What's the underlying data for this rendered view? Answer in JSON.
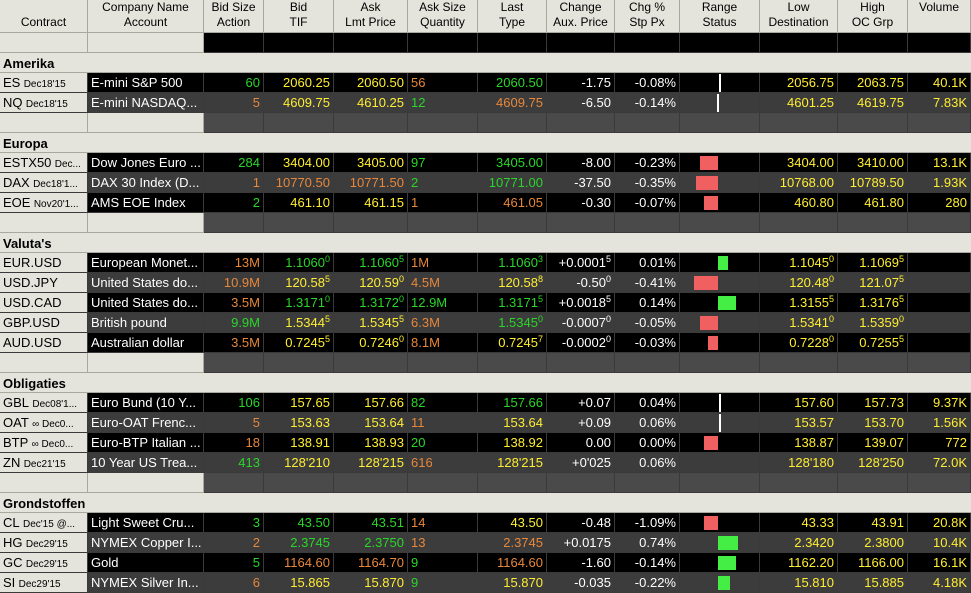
{
  "header": {
    "columns": [
      {
        "l1": "",
        "l2": "Contract"
      },
      {
        "l1": "Company Name",
        "l2": "Account"
      },
      {
        "l1": "Bid Size",
        "l2": "Action"
      },
      {
        "l1": "Bid",
        "l2": "TIF"
      },
      {
        "l1": "Ask",
        "l2": "Lmt Price"
      },
      {
        "l1": "Ask Size",
        "l2": "Quantity"
      },
      {
        "l1": "Last",
        "l2": "Type"
      },
      {
        "l1": "Change",
        "l2": "Aux. Price"
      },
      {
        "l1": "Chg %",
        "l2": "Stp Px"
      },
      {
        "l1": "Range",
        "l2": "Status"
      },
      {
        "l1": "Low",
        "l2": "Destination"
      },
      {
        "l1": "High",
        "l2": "OC Grp"
      },
      {
        "l1": "Volume",
        "l2": ""
      }
    ]
  },
  "colors": {
    "bid_size_up": "#2ad62a",
    "bid_size_down": "#e8873a",
    "change_negative": "#d41c1c",
    "change_positive": "#2727d0",
    "price": "#ffee33"
  },
  "sections": [
    {
      "title": "Amerika",
      "rows": [
        {
          "sym": "ES",
          "exp": "Dec18'15",
          "desc": "E-mini S&P 500",
          "bidsize": "60",
          "bs_c": "g",
          "bid": "2060.25",
          "bid_sup": "",
          "bid_c": "y",
          "ask": "2060.50",
          "ask_sup": "",
          "ask_c": "y",
          "asksize": "56",
          "as_c": "o",
          "last": "2060.50",
          "last_sup": "",
          "last_c": "g",
          "chg": "-1.75",
          "chg_sup": "",
          "chg_t": "neg",
          "pct": "-0.08%",
          "pct_t": "neg",
          "range": {
            "type": "line",
            "level": 0.02
          },
          "low": "2056.75",
          "low_sup": "",
          "high": "2063.75",
          "high_sup": "",
          "vol": "40.1K"
        },
        {
          "sym": "NQ",
          "exp": "Dec18'15",
          "desc": "E-mini NASDAQ...",
          "bidsize": "5",
          "bs_c": "o",
          "bid": "4609.75",
          "bid_sup": "",
          "bid_c": "y",
          "ask": "4610.25",
          "ask_sup": "",
          "ask_c": "y",
          "asksize": "12",
          "as_c": "g",
          "last": "4609.75",
          "last_sup": "",
          "last_c": "o",
          "chg": "-6.50",
          "chg_sup": "",
          "chg_t": "neg",
          "pct": "-0.14%",
          "pct_t": "neg",
          "range": {
            "type": "line",
            "level": -0.02
          },
          "low": "4601.25",
          "low_sup": "",
          "high": "4619.75",
          "high_sup": "",
          "vol": "7.83K"
        }
      ]
    },
    {
      "title": "Europa",
      "rows": [
        {
          "sym": "ESTX50",
          "exp": "Dec...",
          "desc": "Dow Jones Euro ...",
          "bidsize": "284",
          "bs_c": "g",
          "bid": "3404.00",
          "bid_sup": "",
          "bid_c": "y",
          "ask": "3405.00",
          "ask_sup": "",
          "ask_c": "y",
          "asksize": "97",
          "as_c": "g",
          "last": "3405.00",
          "last_sup": "",
          "last_c": "g",
          "chg": "-8.00",
          "chg_sup": "",
          "chg_t": "neg",
          "pct": "-0.23%",
          "pct_t": "neg",
          "range": {
            "type": "red",
            "level": -0.3
          },
          "low": "3404.00",
          "low_sup": "",
          "high": "3410.00",
          "high_sup": "",
          "vol": "13.1K"
        },
        {
          "sym": "DAX",
          "exp": "Dec18'1...",
          "desc": "DAX 30 Index (D...",
          "bidsize": "1",
          "bs_c": "o",
          "bid": "10770.50",
          "bid_sup": "",
          "bid_c": "o",
          "ask": "10771.50",
          "ask_sup": "",
          "ask_c": "o",
          "asksize": "2",
          "as_c": "g",
          "last": "10771.00",
          "last_sup": "",
          "last_c": "g",
          "chg": "-37.50",
          "chg_sup": "",
          "chg_t": "neg",
          "pct": "-0.35%",
          "pct_t": "neg",
          "range": {
            "type": "red",
            "level": -0.4
          },
          "low": "10768.00",
          "low_sup": "",
          "high": "10789.50",
          "high_sup": "",
          "vol": "1.93K"
        },
        {
          "sym": "EOE",
          "exp": "Nov20'1...",
          "desc": "AMS EOE Index",
          "bidsize": "2",
          "bs_c": "g",
          "bid": "461.10",
          "bid_sup": "",
          "bid_c": "y",
          "ask": "461.15",
          "ask_sup": "",
          "ask_c": "y",
          "asksize": "1",
          "as_c": "o",
          "last": "461.05",
          "last_sup": "",
          "last_c": "o",
          "chg": "-0.30",
          "chg_sup": "",
          "chg_t": "neg",
          "pct": "-0.07%",
          "pct_t": "neg",
          "range": {
            "type": "red",
            "level": -0.2
          },
          "low": "460.80",
          "low_sup": "",
          "high": "461.80",
          "high_sup": "",
          "vol": "280"
        }
      ]
    },
    {
      "title": "Valuta's",
      "rows": [
        {
          "sym": "EUR.USD",
          "exp": "",
          "desc": "European Monet...",
          "bidsize": "13M",
          "bs_c": "o",
          "bid": "1.1060",
          "bid_sup": "0",
          "bid_c": "g",
          "ask": "1.1060",
          "ask_sup": "5",
          "ask_c": "g",
          "asksize": "1M",
          "as_c": "o",
          "last": "1.1060",
          "last_sup": "3",
          "last_c": "g",
          "chg": "+0.0001",
          "chg_sup": "5",
          "chg_t": "pos",
          "pct": "0.01%",
          "pct_t": "pos",
          "range": {
            "type": "green",
            "level": 0.1
          },
          "low": "1.1045",
          "low_sup": "0",
          "high": "1.1069",
          "high_sup": "5",
          "vol": ""
        },
        {
          "sym": "USD.JPY",
          "exp": "",
          "desc": "United States do...",
          "bidsize": "10.9M",
          "bs_c": "o",
          "bid": "120.58",
          "bid_sup": "5",
          "bid_c": "y",
          "ask": "120.59",
          "ask_sup": "0",
          "ask_c": "y",
          "asksize": "4.5M",
          "as_c": "o",
          "last": "120.58",
          "last_sup": "8",
          "last_c": "y",
          "chg": "-0.50",
          "chg_sup": "0",
          "chg_t": "neg",
          "pct": "-0.41%",
          "pct_t": "neg",
          "range": {
            "type": "red",
            "level": -0.45
          },
          "low": "120.48",
          "low_sup": "0",
          "high": "121.07",
          "high_sup": "5",
          "vol": ""
        },
        {
          "sym": "USD.CAD",
          "exp": "",
          "desc": "United States do...",
          "bidsize": "3.5M",
          "bs_c": "o",
          "bid": "1.3171",
          "bid_sup": "0",
          "bid_c": "g",
          "ask": "1.3172",
          "ask_sup": "0",
          "ask_c": "g",
          "asksize": "12.9M",
          "as_c": "g",
          "last": "1.3171",
          "last_sup": "5",
          "last_c": "g",
          "chg": "+0.0018",
          "chg_sup": "5",
          "chg_t": "pos",
          "pct": "0.14%",
          "pct_t": "pos",
          "range": {
            "type": "green",
            "level": 0.3
          },
          "low": "1.3155",
          "low_sup": "5",
          "high": "1.3176",
          "high_sup": "5",
          "vol": ""
        },
        {
          "sym": "GBP.USD",
          "exp": "",
          "desc": "British pound",
          "bidsize": "9.9M",
          "bs_c": "g",
          "bid": "1.5344",
          "bid_sup": "5",
          "bid_c": "y",
          "ask": "1.5345",
          "ask_sup": "5",
          "ask_c": "y",
          "asksize": "6.3M",
          "as_c": "o",
          "last": "1.5345",
          "last_sup": "0",
          "last_c": "g",
          "chg": "-0.0007",
          "chg_sup": "0",
          "chg_t": "neg",
          "pct": "-0.05%",
          "pct_t": "neg",
          "range": {
            "type": "red",
            "level": -0.3
          },
          "low": "1.5341",
          "low_sup": "0",
          "high": "1.5359",
          "high_sup": "0",
          "vol": ""
        },
        {
          "sym": "AUD.USD",
          "exp": "",
          "desc": "Australian dollar",
          "bidsize": "3.5M",
          "bs_c": "o",
          "bid": "0.7245",
          "bid_sup": "5",
          "bid_c": "y",
          "ask": "0.7246",
          "ask_sup": "0",
          "ask_c": "y",
          "asksize": "8.1M",
          "as_c": "o",
          "last": "0.7245",
          "last_sup": "7",
          "last_c": "y",
          "chg": "-0.0002",
          "chg_sup": "0",
          "chg_t": "neg",
          "pct": "-0.03%",
          "pct_t": "neg",
          "range": {
            "type": "red",
            "level": -0.1
          },
          "low": "0.7228",
          "low_sup": "0",
          "high": "0.7255",
          "high_sup": "5",
          "vol": ""
        }
      ]
    },
    {
      "title": "Obligaties",
      "rows": [
        {
          "sym": "GBL",
          "exp": "Dec08'1...",
          "desc": "Euro Bund (10 Y...",
          "bidsize": "106",
          "bs_c": "g",
          "bid": "157.65",
          "bid_sup": "",
          "bid_c": "y",
          "ask": "157.66",
          "ask_sup": "",
          "ask_c": "y",
          "asksize": "82",
          "as_c": "g",
          "last": "157.66",
          "last_sup": "",
          "last_c": "g",
          "chg": "+0.07",
          "chg_sup": "",
          "chg_t": "pos",
          "pct": "0.04%",
          "pct_t": "pos",
          "range": {
            "type": "line",
            "level": 0.02
          },
          "low": "157.60",
          "low_sup": "",
          "high": "157.73",
          "high_sup": "",
          "vol": "9.37K"
        },
        {
          "sym": "OAT",
          "exp": "∞ Dec0...",
          "desc": "Euro-OAT Frenc...",
          "bidsize": "5",
          "bs_c": "o",
          "bid": "153.63",
          "bid_sup": "",
          "bid_c": "y",
          "ask": "153.64",
          "ask_sup": "",
          "ask_c": "y",
          "asksize": "11",
          "as_c": "o",
          "last": "153.64",
          "last_sup": "",
          "last_c": "y",
          "chg": "+0.09",
          "chg_sup": "",
          "chg_t": "pos",
          "pct": "0.06%",
          "pct_t": "pos",
          "range": {
            "type": "line",
            "level": 0.02
          },
          "low": "153.57",
          "low_sup": "",
          "high": "153.70",
          "high_sup": "",
          "vol": "1.56K"
        },
        {
          "sym": "BTP",
          "exp": "∞ Dec0...",
          "desc": "Euro-BTP Italian ...",
          "bidsize": "18",
          "bs_c": "o",
          "bid": "138.91",
          "bid_sup": "",
          "bid_c": "y",
          "ask": "138.93",
          "ask_sup": "",
          "ask_c": "y",
          "asksize": "20",
          "as_c": "g",
          "last": "138.92",
          "last_sup": "",
          "last_c": "y",
          "chg": "0.00",
          "chg_sup": "",
          "chg_t": "zero",
          "pct": "0.00%",
          "pct_t": "zero",
          "range": {
            "type": "red",
            "level": -0.2
          },
          "low": "138.87",
          "low_sup": "",
          "high": "139.07",
          "high_sup": "",
          "vol": "772"
        },
        {
          "sym": "ZN",
          "exp": "Dec21'15",
          "desc": "10 Year US Trea...",
          "bidsize": "413",
          "bs_c": "g",
          "bid": "128'210",
          "bid_sup": "",
          "bid_c": "y",
          "ask": "128'215",
          "ask_sup": "",
          "ask_c": "y",
          "asksize": "616",
          "as_c": "o",
          "last": "128'215",
          "last_sup": "",
          "last_c": "y",
          "chg": "+0'025",
          "chg_sup": "",
          "chg_t": "pos",
          "pct": "0.06%",
          "pct_t": "pos",
          "range": {
            "type": "none",
            "level": 0
          },
          "low": "128'180",
          "low_sup": "",
          "high": "128'250",
          "high_sup": "",
          "vol": "72.0K"
        }
      ]
    },
    {
      "title": "Grondstoffen",
      "rows": [
        {
          "sym": "CL",
          "exp": "Dec'15 @...",
          "desc": "Light Sweet Cru...",
          "bidsize": "3",
          "bs_c": "g",
          "bid": "43.50",
          "bid_sup": "",
          "bid_c": "g",
          "ask": "43.51",
          "ask_sup": "",
          "ask_c": "g",
          "asksize": "14",
          "as_c": "o",
          "last": "43.50",
          "last_sup": "",
          "last_c": "y",
          "chg": "-0.48",
          "chg_sup": "",
          "chg_t": "neg",
          "pct": "-1.09%",
          "pct_t": "neg",
          "range": {
            "type": "red",
            "level": -0.2
          },
          "low": "43.33",
          "low_sup": "",
          "high": "43.91",
          "high_sup": "",
          "vol": "20.8K"
        },
        {
          "sym": "HG",
          "exp": "Dec29'15",
          "desc": "NYMEX Copper I...",
          "bidsize": "2",
          "bs_c": "o",
          "bid": "2.3745",
          "bid_sup": "",
          "bid_c": "g",
          "ask": "2.3750",
          "ask_sup": "",
          "ask_c": "g",
          "asksize": "13",
          "as_c": "o",
          "last": "2.3745",
          "last_sup": "",
          "last_c": "o",
          "chg": "+0.0175",
          "chg_sup": "",
          "chg_t": "pos",
          "pct": "0.74%",
          "pct_t": "pos",
          "range": {
            "type": "green",
            "level": 0.35
          },
          "low": "2.3420",
          "low_sup": "",
          "high": "2.3800",
          "high_sup": "",
          "vol": "10.4K"
        },
        {
          "sym": "GC",
          "exp": "Dec29'15",
          "desc": "Gold",
          "bidsize": "5",
          "bs_c": "g",
          "bid": "1164.60",
          "bid_sup": "",
          "bid_c": "o",
          "ask": "1164.70",
          "ask_sup": "",
          "ask_c": "o",
          "asksize": "9",
          "as_c": "g",
          "last": "1164.60",
          "last_sup": "",
          "last_c": "o",
          "chg": "-1.60",
          "chg_sup": "",
          "chg_t": "neg",
          "pct": "-0.14%",
          "pct_t": "neg",
          "range": {
            "type": "green",
            "level": 0.3
          },
          "low": "1162.20",
          "low_sup": "",
          "high": "1166.00",
          "high_sup": "",
          "vol": "16.1K"
        },
        {
          "sym": "SI",
          "exp": "Dec29'15",
          "desc": "NYMEX Silver In...",
          "bidsize": "6",
          "bs_c": "o",
          "bid": "15.865",
          "bid_sup": "",
          "bid_c": "y",
          "ask": "15.870",
          "ask_sup": "",
          "ask_c": "y",
          "asksize": "9",
          "as_c": "g",
          "last": "15.870",
          "last_sup": "",
          "last_c": "y",
          "chg": "-0.035",
          "chg_sup": "",
          "chg_t": "neg",
          "pct": "-0.22%",
          "pct_t": "neg",
          "range": {
            "type": "green",
            "level": 0.15
          },
          "low": "15.810",
          "low_sup": "",
          "high": "15.885",
          "high_sup": "",
          "vol": "4.18K"
        }
      ]
    }
  ]
}
